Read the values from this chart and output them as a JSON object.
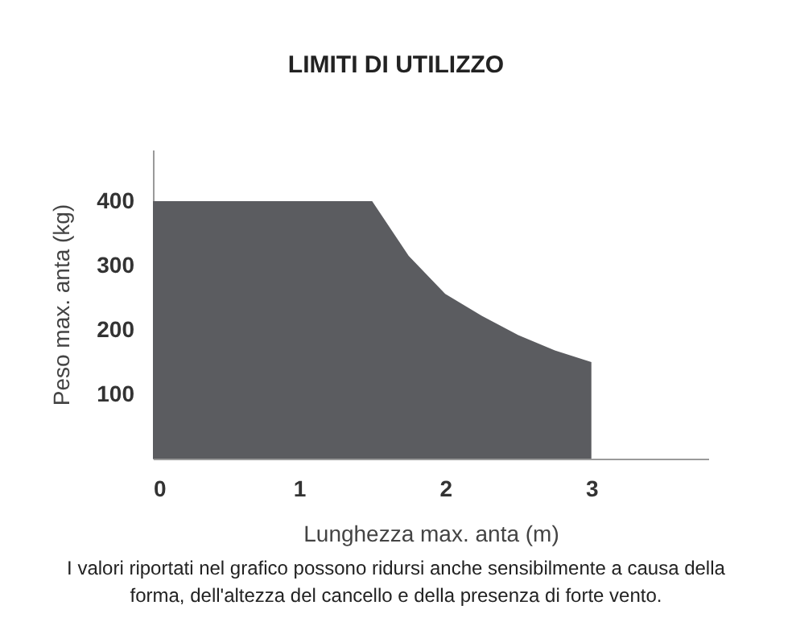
{
  "chart_data": {
    "type": "area",
    "title": "LIMITI DI UTILIZZO",
    "xlabel": "Lunghezza max. anta (m)",
    "ylabel": "Peso max. anta (kg)",
    "x": [
      0,
      1.5,
      1.75,
      2,
      2.25,
      2.5,
      2.75,
      3
    ],
    "values": [
      400,
      400,
      315,
      256,
      222,
      192,
      168,
      150
    ],
    "color": "#5b5c60",
    "xlim": [
      0,
      3.8
    ],
    "ylim": [
      0,
      480
    ],
    "xticks": [
      0,
      1,
      2,
      3
    ],
    "yticks": [
      100,
      200,
      300,
      400
    ],
    "annotations": [
      "I valori riportati nel grafico possono ridursi anche sensibilmente a causa della forma, dell'altezza del cancello e della presenza di forte vento."
    ]
  }
}
